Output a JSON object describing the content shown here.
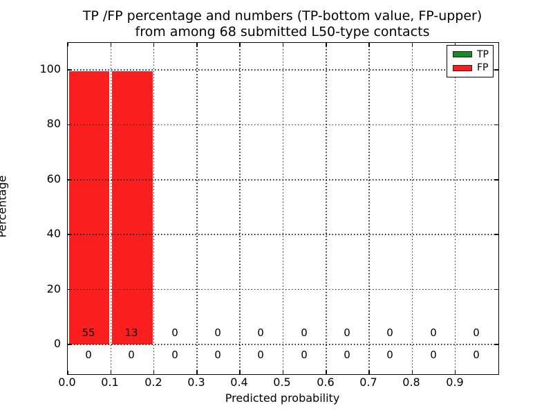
{
  "title": {
    "line1": "TP /FP percentage and numbers (TP-bottom value, FP-upper)",
    "line2": "from among 68 submitted L50-type contacts"
  },
  "chart_data": {
    "type": "bar",
    "title": "TP /FP percentage and numbers (TP-bottom value, FP-upper)\nfrom among 68 submitted L50-type contacts",
    "xlabel": "Predicted probability",
    "ylabel": "Percentage",
    "xlim": [
      0.0,
      1.0
    ],
    "ylim": [
      -11,
      110
    ],
    "grid": "dotted",
    "total_submitted": 68,
    "bin_edges": [
      0.0,
      0.1,
      0.2,
      0.3,
      0.4,
      0.5,
      0.6,
      0.7,
      0.8,
      0.9,
      1.0
    ],
    "x_tick_labels": [
      "0.0",
      "0.1",
      "0.2",
      "0.3",
      "0.4",
      "0.5",
      "0.6",
      "0.7",
      "0.8",
      "0.9"
    ],
    "y_tick_labels": [
      "0",
      "20",
      "40",
      "60",
      "80",
      "100"
    ],
    "y_tick_values": [
      0,
      20,
      40,
      60,
      80,
      100
    ],
    "series": [
      {
        "name": "TP",
        "color": "#1a8a26",
        "label_row": "bottom",
        "percent": [
          0,
          0,
          0,
          0,
          0,
          0,
          0,
          0,
          0,
          0
        ],
        "counts": [
          0,
          0,
          0,
          0,
          0,
          0,
          0,
          0,
          0,
          0
        ]
      },
      {
        "name": "FP",
        "color": "#fa1e1e",
        "label_row": "top",
        "percent": [
          100,
          100,
          0,
          0,
          0,
          0,
          0,
          0,
          0,
          0
        ],
        "counts": [
          55,
          13,
          0,
          0,
          0,
          0,
          0,
          0,
          0,
          0
        ]
      }
    ],
    "legend": {
      "position": "upper right",
      "entries": [
        {
          "label": "TP",
          "color": "#1a8a26"
        },
        {
          "label": "FP",
          "color": "#fa1e1e"
        }
      ]
    }
  }
}
